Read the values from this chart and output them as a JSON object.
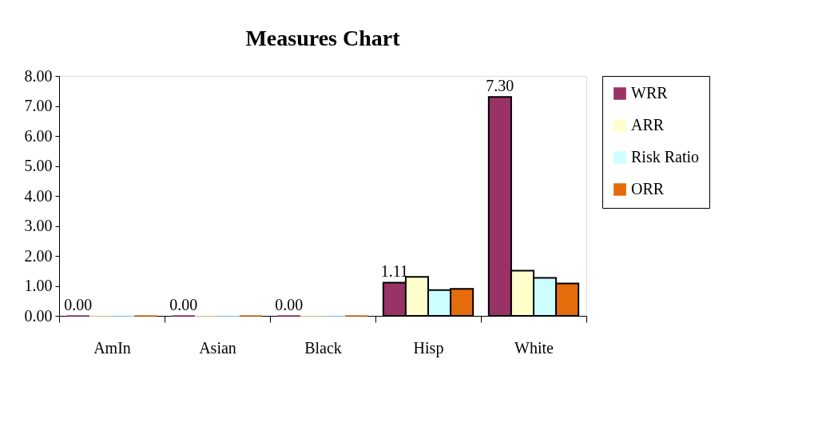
{
  "chart_data": {
    "type": "bar",
    "title": "Measures Chart",
    "categories": [
      "AmIn",
      "Asian",
      "Black",
      "Hisp",
      "White"
    ],
    "series": [
      {
        "name": "WRR",
        "color": "#993366",
        "values": [
          0,
          0,
          0,
          1.11,
          7.3
        ],
        "value_labels": [
          "0.00",
          "0.00",
          "0.00",
          "1.11",
          "7.30"
        ]
      },
      {
        "name": "ARR",
        "color": "#ffffcc",
        "values": [
          0,
          0,
          0,
          1.3,
          1.51
        ]
      },
      {
        "name": "Risk Ratio",
        "color": "#ccffff",
        "values": [
          0,
          0,
          0,
          0.86,
          1.27
        ]
      },
      {
        "name": "ORR",
        "color": "#e46c0a",
        "values": [
          0,
          0,
          0,
          0.9,
          1.08
        ]
      }
    ],
    "ylim": [
      0,
      8
    ],
    "yticks": [
      {
        "value": 0,
        "label": "0.00"
      },
      {
        "value": 1,
        "label": "1.00"
      },
      {
        "value": 2,
        "label": "2.00"
      },
      {
        "value": 3,
        "label": "3.00"
      },
      {
        "value": 4,
        "label": "4.00"
      },
      {
        "value": 5,
        "label": "5.00"
      },
      {
        "value": 6,
        "label": "6.00"
      },
      {
        "value": 7,
        "label": "7.00"
      },
      {
        "value": 8,
        "label": "8.00"
      }
    ],
    "grid": false,
    "legend": "right"
  }
}
